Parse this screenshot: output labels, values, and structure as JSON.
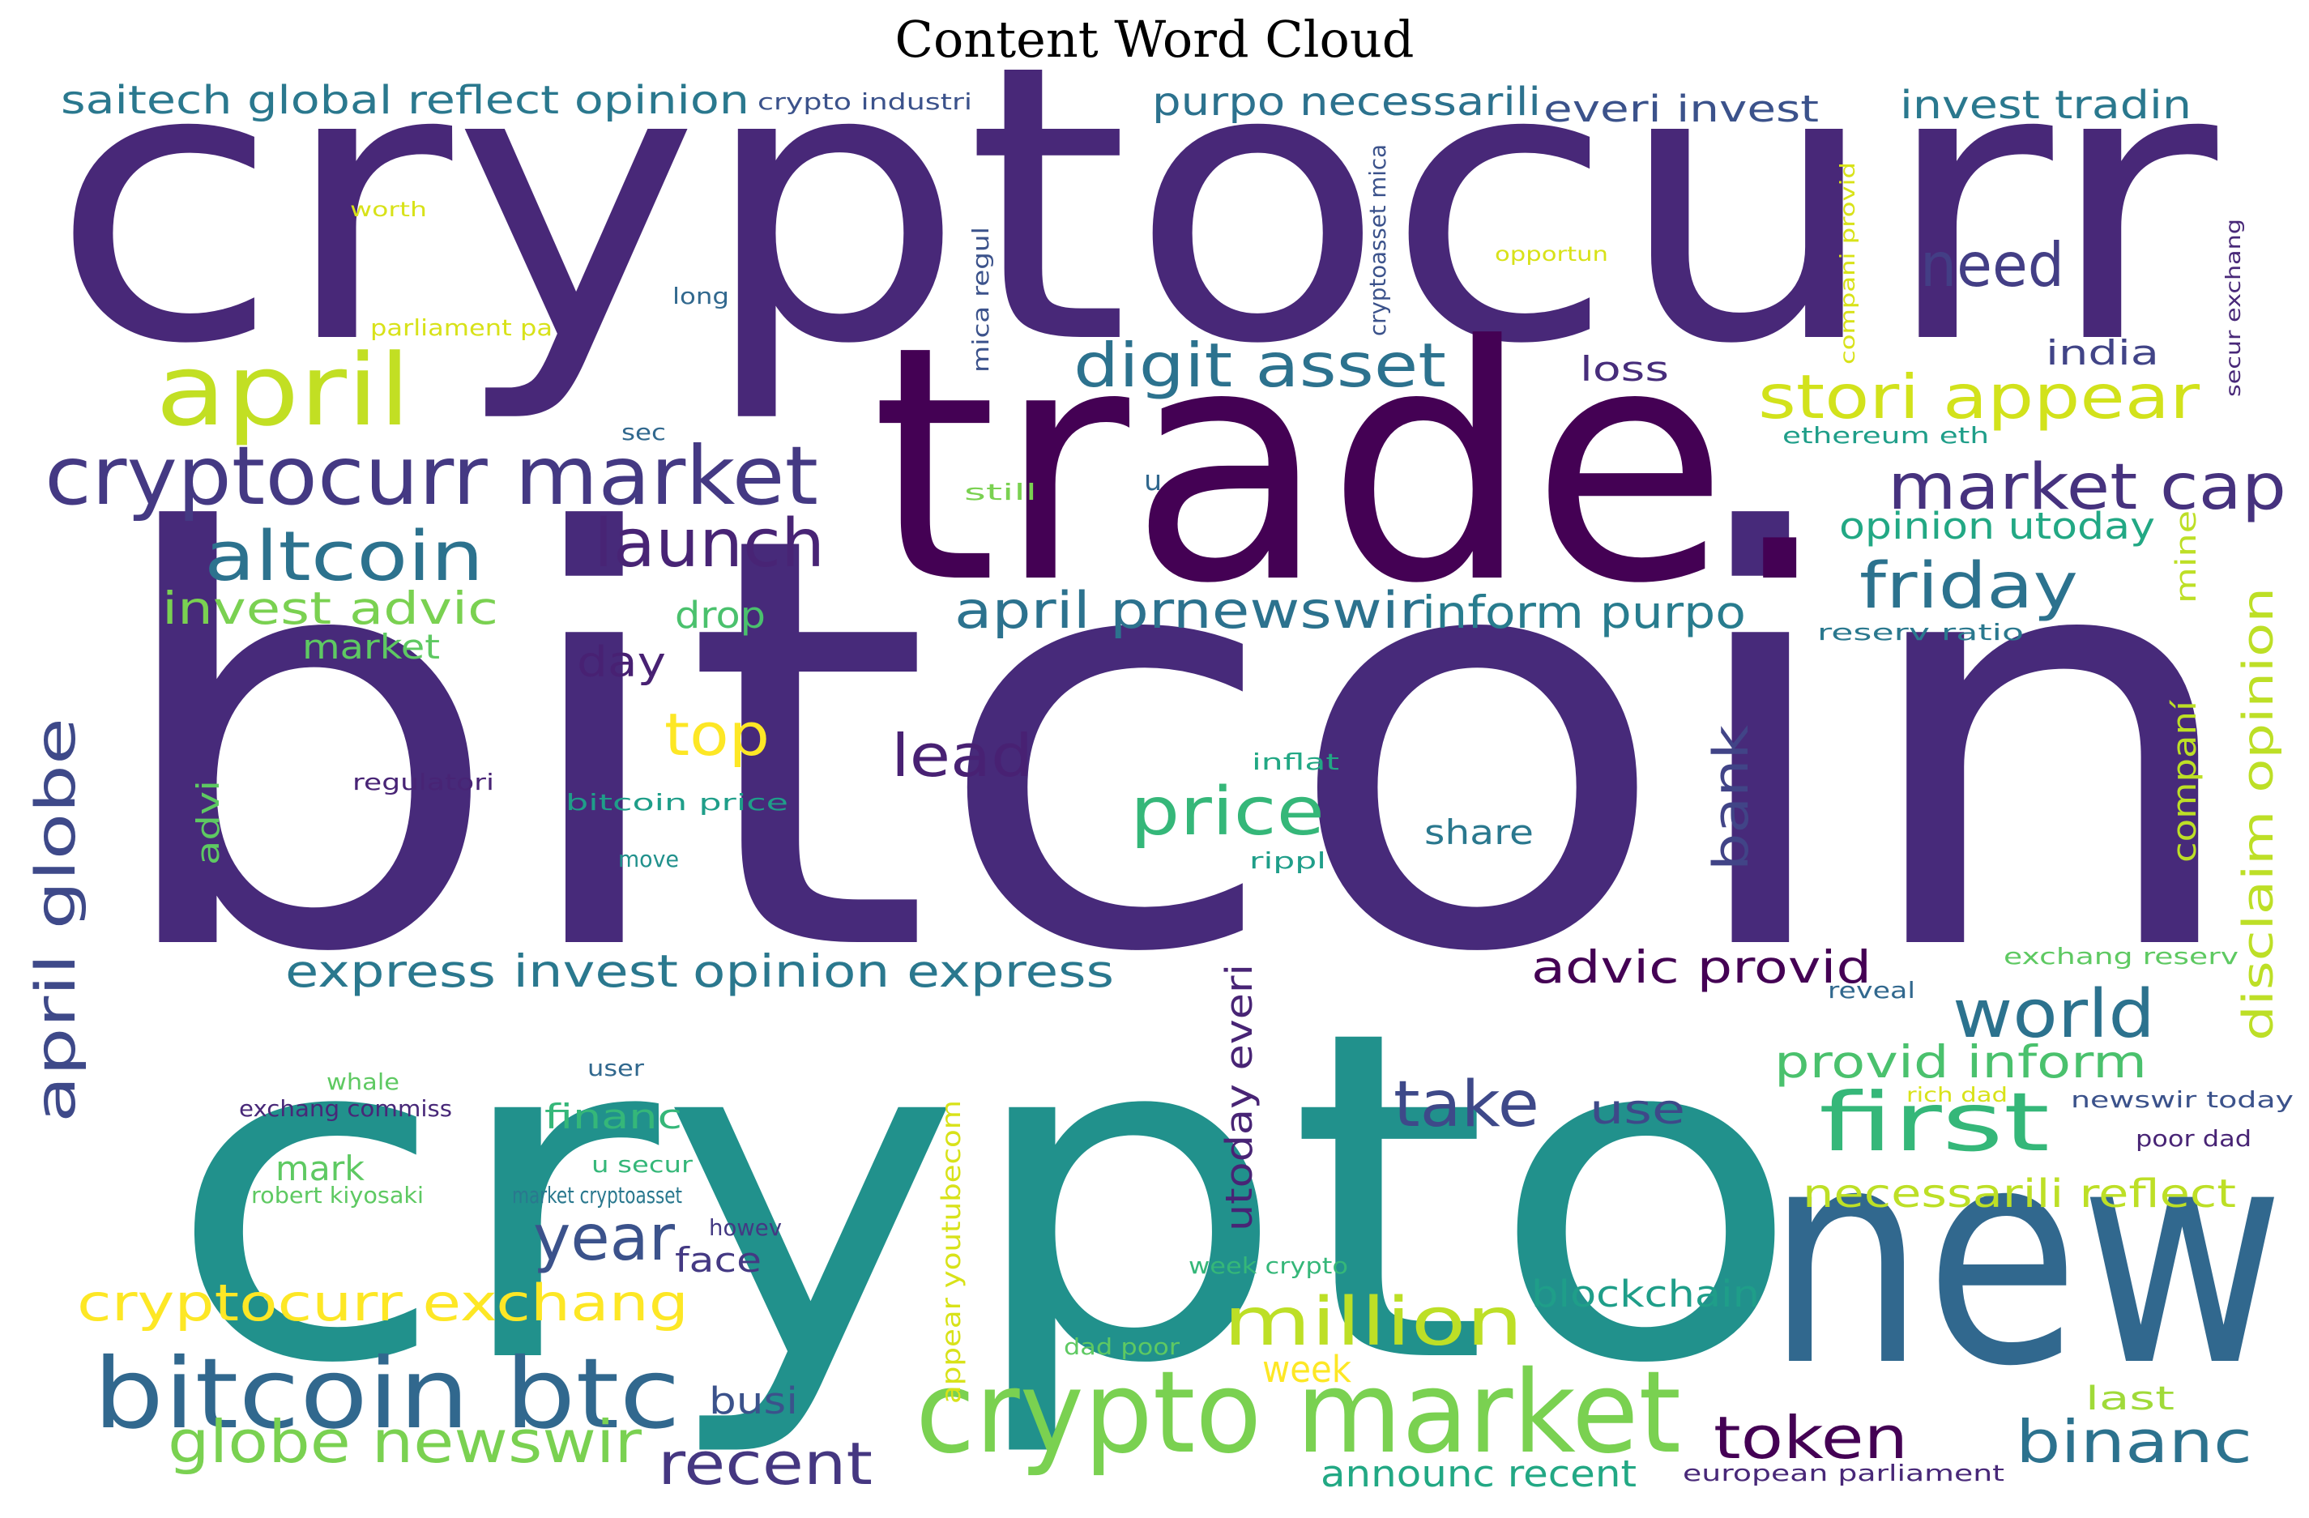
{
  "title": "Content Word Cloud",
  "words": [
    {
      "text": "cryptocurr",
      "color": "#482878"
    },
    {
      "text": "bitcoin",
      "color": "#472a7a"
    },
    {
      "text": "crypto",
      "color": "#21918c"
    },
    {
      "text": "trade.",
      "color": "#440154"
    },
    {
      "text": "new",
      "color": "#31688e"
    },
    {
      "text": "crypto market",
      "color": "#7ad151"
    },
    {
      "text": "cryptocurr market",
      "color": "#443983"
    },
    {
      "text": "april",
      "color": "#c2df23"
    },
    {
      "text": "bitcoin btc",
      "color": "#31688e"
    },
    {
      "text": "launch",
      "color": "#482475"
    },
    {
      "text": "altcoin",
      "color": "#2c728e"
    },
    {
      "text": "digit asset",
      "color": "#2c728e"
    },
    {
      "text": "stori appear",
      "color": "#d2e21b"
    },
    {
      "text": "market cap",
      "color": "#46327e"
    },
    {
      "text": "need",
      "color": "#433e85"
    },
    {
      "text": "friday",
      "color": "#2c728e"
    },
    {
      "text": "price",
      "color": "#35b779"
    },
    {
      "text": "first",
      "color": "#35b779"
    },
    {
      "text": "world",
      "color": "#2c728e"
    },
    {
      "text": "million",
      "color": "#bddf26"
    },
    {
      "text": "token",
      "color": "#440154"
    },
    {
      "text": "binanc",
      "color": "#2c728e"
    },
    {
      "text": "recent",
      "color": "#453781"
    },
    {
      "text": "globe newswir",
      "color": "#7ad151"
    },
    {
      "text": "cryptocurr exchang",
      "color": "#fde725"
    },
    {
      "text": "year",
      "color": "#3b528b"
    },
    {
      "text": "take",
      "color": "#3e4989"
    },
    {
      "text": "lead",
      "color": "#482173"
    },
    {
      "text": "top",
      "color": "#fde725"
    },
    {
      "text": "april globe",
      "color": "#3e4989"
    },
    {
      "text": "april prnewswir",
      "color": "#2c728e"
    },
    {
      "text": "inform purpo",
      "color": "#287c8e"
    },
    {
      "text": "express invest",
      "color": "#2a788e"
    },
    {
      "text": "opinion express",
      "color": "#2a788e"
    },
    {
      "text": "advic provid",
      "color": "#440154"
    },
    {
      "text": "provid inform",
      "color": "#4ac16d"
    },
    {
      "text": "bank",
      "color": "#414487"
    },
    {
      "text": "disclaim opinion",
      "color": "#bddf26"
    },
    {
      "text": "saitech global reflect opinion",
      "color": "#2a788e"
    },
    {
      "text": "purpo necessarili",
      "color": "#2c728e"
    },
    {
      "text": "everi invest",
      "color": "#3b528b"
    },
    {
      "text": "invest tradin",
      "color": "#2a788e"
    },
    {
      "text": "invest advic",
      "color": "#7ad151"
    },
    {
      "text": "necessarili reflect",
      "color": "#bddf26"
    },
    {
      "text": "opinion utoday",
      "color": "#22a884"
    },
    {
      "text": "utoday everi",
      "color": "#482475"
    },
    {
      "text": "day",
      "color": "#482173"
    },
    {
      "text": "use",
      "color": "#3e4989"
    },
    {
      "text": "blockchain",
      "color": "#1f9e89"
    },
    {
      "text": "busi",
      "color": "#3b528b"
    },
    {
      "text": "week",
      "color": "#fde725"
    },
    {
      "text": "announc recent",
      "color": "#22a884"
    },
    {
      "text": "drop",
      "color": "#4ac16d"
    },
    {
      "text": "market",
      "color": "#5ec962"
    },
    {
      "text": "mark",
      "color": "#5ec962"
    },
    {
      "text": "financ",
      "color": "#35b779"
    },
    {
      "text": "face",
      "color": "#443983"
    },
    {
      "text": "share",
      "color": "#2a788e"
    },
    {
      "text": "loss",
      "color": "#472d7b"
    },
    {
      "text": "india",
      "color": "#414487"
    },
    {
      "text": "last",
      "color": "#a0da39"
    },
    {
      "text": "companí",
      "color": "#bddf26"
    },
    {
      "text": "advi",
      "color": "#5ec962"
    },
    {
      "text": "mine",
      "color": "#bddf26"
    },
    {
      "text": "u",
      "color": "#31688e"
    },
    {
      "text": "appear youtubecom",
      "color": "#d8e219"
    },
    {
      "text": "crypto industri",
      "color": "#3b528b"
    },
    {
      "text": "worth",
      "color": "#d8e219"
    },
    {
      "text": "long",
      "color": "#31688e"
    },
    {
      "text": "parliament pa",
      "color": "#d8e219"
    },
    {
      "text": "sec",
      "color": "#31688e"
    },
    {
      "text": "still",
      "color": "#7ad151"
    },
    {
      "text": "opportun",
      "color": "#d8e219"
    },
    {
      "text": "ethereum eth",
      "color": "#1f9e89"
    },
    {
      "text": "reserv ratio",
      "color": "#2a788e"
    },
    {
      "text": "inflat",
      "color": "#22a884"
    },
    {
      "text": "regulatori",
      "color": "#482475"
    },
    {
      "text": "bitcoin price",
      "color": "#1f9e89"
    },
    {
      "text": "move",
      "color": "#21918c"
    },
    {
      "text": "rippl",
      "color": "#1f9e89"
    },
    {
      "text": "exchang reserv",
      "color": "#5ec962"
    },
    {
      "text": "reveal",
      "color": "#31688e"
    },
    {
      "text": "whale",
      "color": "#5ec962"
    },
    {
      "text": "user",
      "color": "#31688e"
    },
    {
      "text": "exchang commiss",
      "color": "#482878"
    },
    {
      "text": "rich dad",
      "color": "#d8e219"
    },
    {
      "text": "newswir today",
      "color": "#3b528b"
    },
    {
      "text": "poor dad",
      "color": "#482475"
    },
    {
      "text": "u secur",
      "color": "#35b779"
    },
    {
      "text": "robert kiyosaki",
      "color": "#5ec962"
    },
    {
      "text": "market cryptoasset",
      "color": "#2a788e"
    },
    {
      "text": "howev",
      "color": "#443983"
    },
    {
      "text": "week crypto",
      "color": "#35b779"
    },
    {
      "text": "dad poor",
      "color": "#5ec962"
    },
    {
      "text": "european parliament",
      "color": "#482878"
    },
    {
      "text": "mica regul",
      "color": "#3b528b"
    },
    {
      "text": "cryptoasset mica",
      "color": "#3b528b"
    },
    {
      "text": "compani provid",
      "color": "#d8e219"
    },
    {
      "text": "secur exchang",
      "color": "#482878"
    }
  ]
}
